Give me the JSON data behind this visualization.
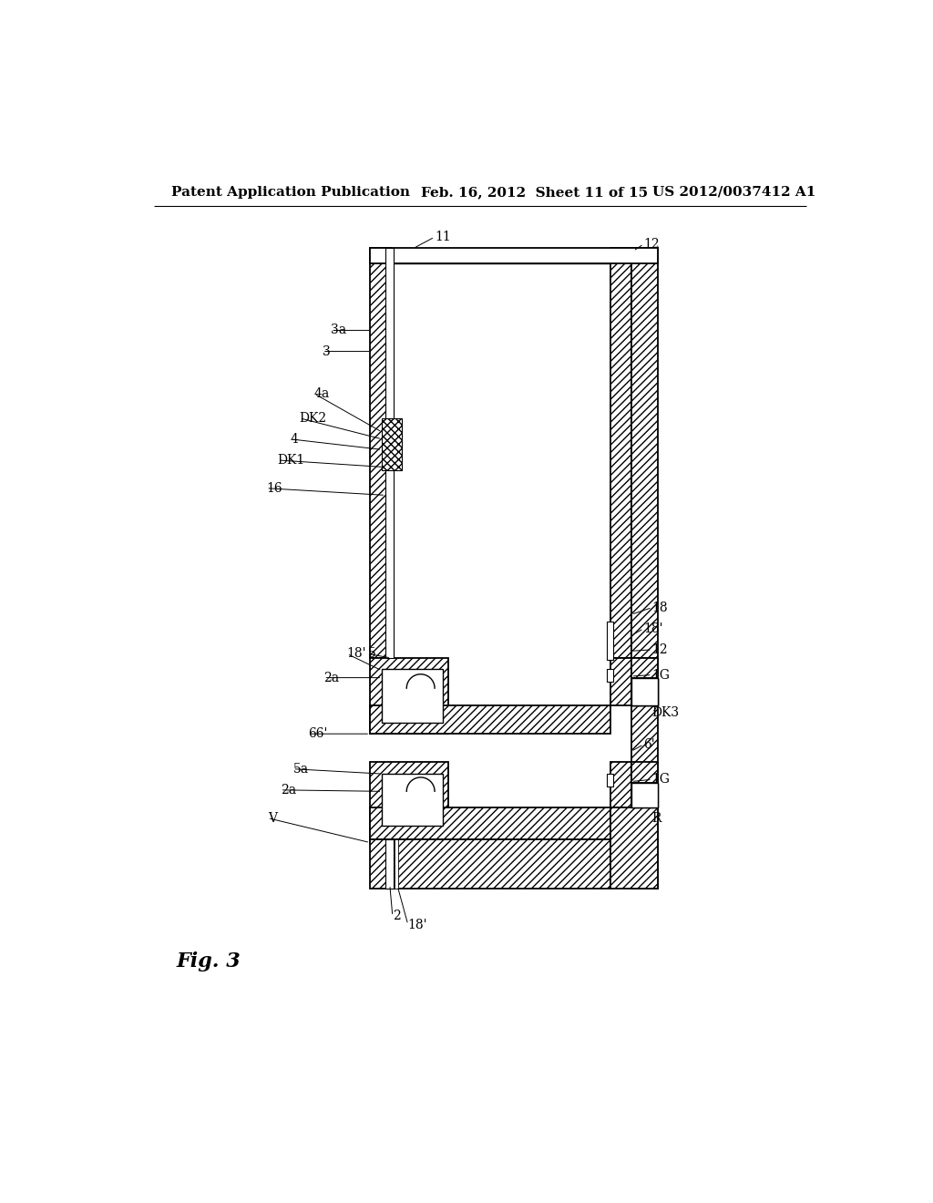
{
  "bg_color": "#ffffff",
  "lc": "#000000",
  "header_left": "Patent Application Publication",
  "header_mid": "Feb. 16, 2012  Sheet 11 of 15",
  "header_right": "US 2012/0037412 A1",
  "fig_label": "Fig. 3"
}
